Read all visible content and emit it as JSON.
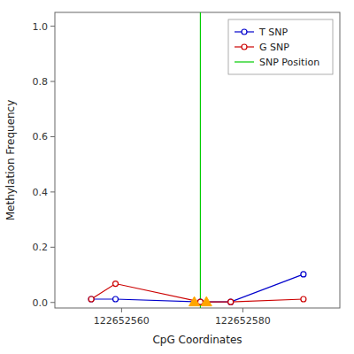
{
  "chart_data": {
    "type": "line",
    "xlabel": "CpG Coordinates",
    "ylabel": "Methylation Frequency",
    "xlim": [
      122652549,
      122652596
    ],
    "ylim": [
      -0.02,
      1.05
    ],
    "xticks": [
      122652560,
      122652580
    ],
    "yticks": [
      {
        "value": 0.0,
        "label": "0.0"
      },
      0.2,
      0.4,
      0.6,
      0.8,
      {
        "value": 1.0,
        "label": "1.0"
      }
    ],
    "grid": false,
    "legend": "upper right",
    "series": [
      {
        "name": "T SNP",
        "type": "line",
        "marker": "circle",
        "color": "#0000cc",
        "x": [
          122652555,
          122652559,
          122652573,
          122652578,
          122652590
        ],
        "values": [
          0.012,
          0.012,
          0.002,
          0.002,
          0.102
        ]
      },
      {
        "name": "G SNP",
        "type": "line",
        "marker": "circle",
        "color": "#cc0000",
        "x": [
          122652555,
          122652559,
          122652573,
          122652578,
          122652590
        ],
        "values": [
          0.012,
          0.068,
          0.002,
          0.002,
          0.012
        ]
      },
      {
        "type": "scatter",
        "marker": "triangle",
        "color": "#FFA500",
        "x": [
          122652572,
          122652574
        ],
        "values": [
          0.002,
          0.002
        ]
      }
    ],
    "vlines": [
      {
        "name": "SNP Position",
        "x": 122652573,
        "color": "#00cc00"
      }
    ]
  }
}
